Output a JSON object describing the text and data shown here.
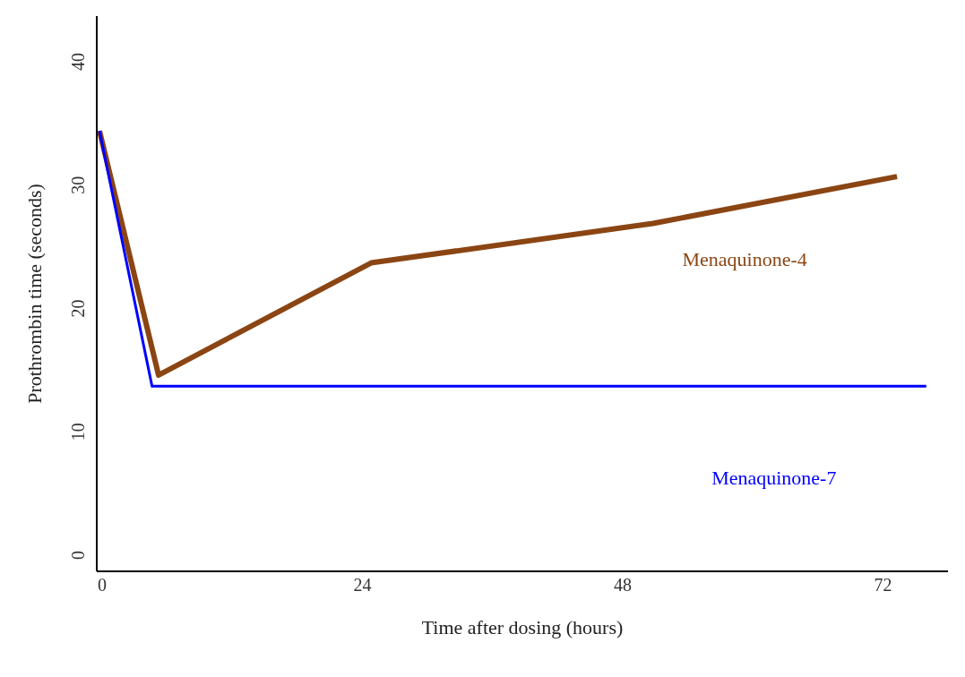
{
  "chart_data": {
    "type": "line",
    "xlabel": "Time after dosing (hours)",
    "ylabel": "Prothrombin time (seconds)",
    "xlim": [
      -0.5,
      78
    ],
    "xticks": [
      0,
      24,
      48,
      72
    ],
    "ylim": [
      -1.3,
      43.7
    ],
    "yticks": [
      0,
      10,
      20,
      30,
      40
    ],
    "grid": false,
    "legend": false,
    "marker": "none",
    "line_style": "solid",
    "series": [
      {
        "name": "Menaquinone-4",
        "color": "#8b4513",
        "x": [
          -0.25,
          5.2,
          24.8,
          50.8,
          73.3
        ],
        "values": [
          34.4,
          14.6,
          23.7,
          26.9,
          30.7
        ]
      },
      {
        "name": "Menaquinone-7",
        "color": "#0000ff",
        "x": [
          -0.25,
          4.6,
          76
        ],
        "values": [
          34.4,
          13.7,
          13.7
        ]
      }
    ]
  }
}
